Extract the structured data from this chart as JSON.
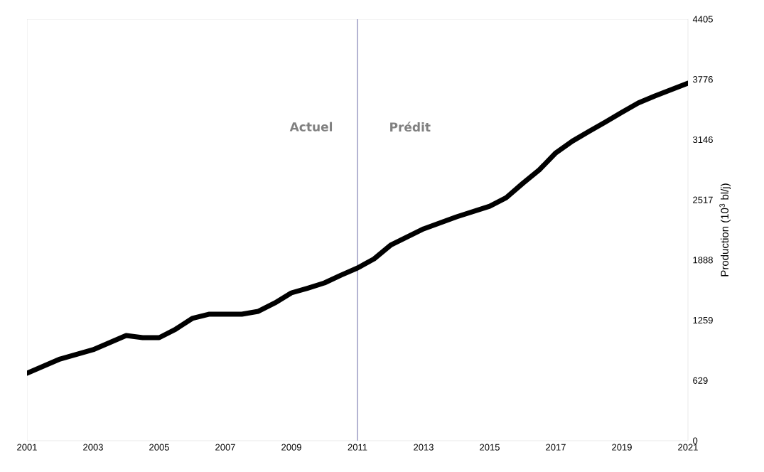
{
  "chart_data": {
    "type": "line",
    "ylabel": "Production (10$^{3}$ bl/j)",
    "x": [
      2001,
      2002,
      2003,
      2004,
      2004.5,
      2005,
      2005.5,
      2006,
      2006.5,
      2007,
      2007.5,
      2008,
      2008.5,
      2009,
      2009.5,
      2010,
      2010.5,
      2011,
      2011.5,
      2012,
      2013,
      2014,
      2015,
      2015.5,
      2016,
      2016.5,
      2017,
      2017.5,
      2018,
      2018.5,
      2019,
      2019.5,
      2020,
      2020.5,
      2021
    ],
    "series": [
      {
        "color": "#000000",
        "values": [
          706,
          854,
          951,
          1099,
          1077,
          1077,
          1166,
          1278,
          1322,
          1322,
          1322,
          1352,
          1440,
          1545,
          1595,
          1649,
          1730,
          1805,
          1900,
          2043,
          2214,
          2340,
          2451,
          2540,
          2689,
          2830,
          3008,
          3130,
          3231,
          3330,
          3432,
          3530,
          3603,
          3670,
          3736
        ]
      }
    ],
    "xlim": [
      2001,
      2021
    ],
    "xticks": [
      2001,
      2003,
      2005,
      2007,
      2009,
      2011,
      2013,
      2015,
      2017,
      2019,
      2021
    ],
    "ylim": [
      0,
      4405
    ],
    "yticks": [
      0,
      629,
      1259,
      1888,
      2517,
      3146,
      3776,
      4405
    ],
    "ref_lines": [
      {
        "axis": "x",
        "value": 2011,
        "color": "#b4b4d2"
      }
    ],
    "annotations": [
      "Actuel",
      "Prédit"
    ],
    "grid": false,
    "marker": "none",
    "line_style": "solid"
  }
}
